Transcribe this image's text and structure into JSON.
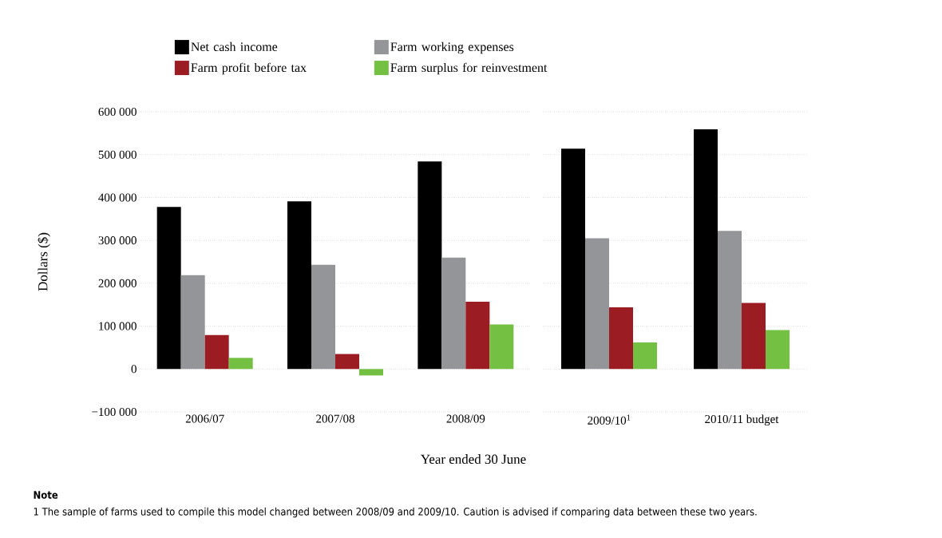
{
  "chart_data": [
    {
      "type": "bar",
      "categories": [
        "2006/07",
        "2007/08",
        "2008/09"
      ],
      "ylabel": "Dollars ($)",
      "xlabel": "Year ended 30 June",
      "series": [
        {
          "name": "Net cash income",
          "color": "#000000",
          "values": [
            378000,
            391000,
            484000
          ]
        },
        {
          "name": "Farm working expenses",
          "color": "#939598",
          "values": [
            219000,
            243000,
            260000
          ]
        },
        {
          "name": "Farm profit before tax",
          "color": "#9b1c22",
          "values": [
            79000,
            35000,
            157000
          ]
        },
        {
          "name": "Farm surplus for reinvestment",
          "color": "#74c043",
          "values": [
            26000,
            -15000,
            104000
          ]
        }
      ],
      "ylim": [
        -100000,
        600000
      ],
      "yticks": [
        {
          "value": -100000,
          "label": "−100 000"
        },
        {
          "value": 0,
          "label": "0"
        },
        {
          "value": 100000,
          "label": "100 000"
        },
        {
          "value": 200000,
          "label": "200 000"
        },
        {
          "value": 300000,
          "label": "300 000"
        },
        {
          "value": 400000,
          "label": "400 000"
        },
        {
          "value": 500000,
          "label": "500 000"
        },
        {
          "value": 600000,
          "label": "600 000"
        }
      ],
      "grid": "y",
      "legend": "top",
      "annotations": [
        "Note",
        "1 The sample of farms used to compile this model changed between 2008/09 and 2009/10. Caution is advised if comparing data between these two years."
      ]
    },
    {
      "type": "bar",
      "categories": [
        "2009/10$^{1}$",
        "2010/11 budget"
      ],
      "series": [
        {
          "color": "#000000",
          "values": [
            514000,
            559000
          ]
        },
        {
          "color": "#939598",
          "values": [
            305000,
            322000
          ]
        },
        {
          "color": "#9b1c22",
          "values": [
            144000,
            154000
          ]
        },
        {
          "color": "#74c043",
          "values": [
            62000,
            91000
          ]
        }
      ],
      "ylim": [
        -100000,
        600000
      ],
      "yticks": [
        -100000,
        0,
        100000,
        200000,
        300000,
        400000,
        500000,
        600000
      ],
      "grid": "y",
      "tick_labels": "x"
    }
  ]
}
